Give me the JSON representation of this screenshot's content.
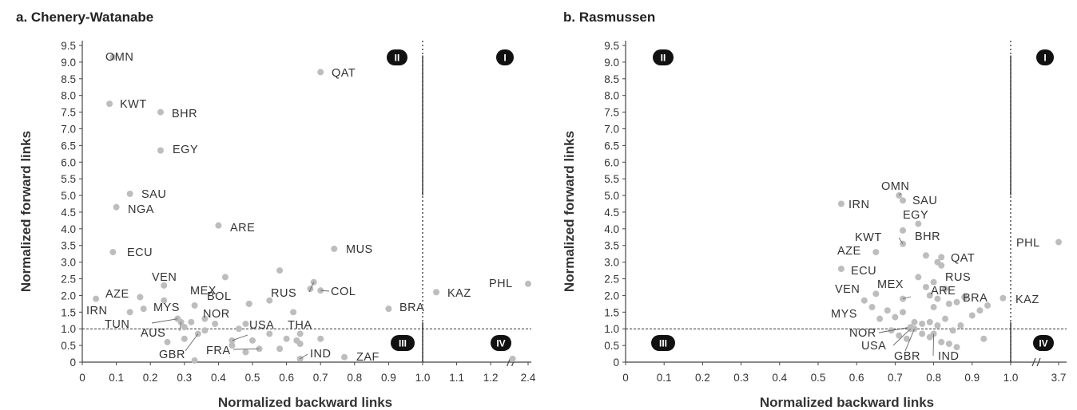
{
  "chart_data": [
    {
      "type": "scatter",
      "title": "a. Chenery-Watanabe",
      "xlabel": "Normalized backward links",
      "ylabel": "Normalized forward links",
      "xlim": [
        0,
        2.4
      ],
      "ylim": [
        0,
        9.5
      ],
      "x_ticks": [
        0,
        0.1,
        0.2,
        0.3,
        0.4,
        0.5,
        0.6,
        0.7,
        0.8,
        0.9,
        1.0,
        1.1,
        1.2,
        2.4
      ],
      "x_tick_labels": [
        "0",
        "0.1",
        "0.2",
        "0.3",
        "0.4",
        "0.5",
        "0.6",
        "0.7",
        "0.8",
        "0.9",
        "1.0",
        "1.1",
        "1.2",
        "2.4"
      ],
      "x_break": [
        1.2,
        2.4
      ],
      "y_ticks": [
        0,
        0.5,
        1.0,
        1.5,
        2.0,
        2.5,
        3.0,
        3.5,
        4.0,
        4.5,
        5.0,
        5.5,
        6.0,
        6.5,
        7.0,
        7.5,
        8.0,
        8.5,
        9.0,
        9.5
      ],
      "y_tick_labels": [
        "0",
        "0.5",
        "1.0",
        "1.5",
        "2.0",
        "2.5",
        "3.0",
        "3.5",
        "4.0",
        "4.5",
        "5.0",
        "5.5",
        "6.0",
        "6.5",
        "7.0",
        "7.5",
        "8.0",
        "8.5",
        "9.0",
        "9.5"
      ],
      "reference_lines": {
        "x": 1.0,
        "y": 1.0
      },
      "quadrants": [
        {
          "label": "I",
          "position": "top-right"
        },
        {
          "label": "II",
          "position": "top-left"
        },
        {
          "label": "III",
          "position": "bottom-left"
        },
        {
          "label": "IV",
          "position": "bottom-right"
        }
      ],
      "labeled_points": [
        {
          "name": "OMN",
          "x": 0.09,
          "y": 9.15
        },
        {
          "name": "QAT",
          "x": 0.7,
          "y": 8.7
        },
        {
          "name": "KWT",
          "x": 0.08,
          "y": 7.75
        },
        {
          "name": "BHR",
          "x": 0.23,
          "y": 7.5
        },
        {
          "name": "EGY",
          "x": 0.23,
          "y": 6.35
        },
        {
          "name": "SAU",
          "x": 0.14,
          "y": 5.05
        },
        {
          "name": "NGA",
          "x": 0.1,
          "y": 4.65
        },
        {
          "name": "ARE",
          "x": 0.4,
          "y": 4.1
        },
        {
          "name": "MUS",
          "x": 0.74,
          "y": 3.4
        },
        {
          "name": "ECU",
          "x": 0.09,
          "y": 3.3
        },
        {
          "name": "VEN",
          "x": 0.24,
          "y": 2.3
        },
        {
          "name": "MEX",
          "x": 0.33,
          "y": 1.7
        },
        {
          "name": "BOL",
          "x": 0.49,
          "y": 1.75
        },
        {
          "name": "RUS",
          "x": 0.68,
          "y": 2.4
        },
        {
          "name": "COL",
          "x": 0.7,
          "y": 2.15
        },
        {
          "name": "AZE",
          "x": 0.17,
          "y": 1.95
        },
        {
          "name": "IRN",
          "x": 0.04,
          "y": 1.9
        },
        {
          "name": "MYS",
          "x": 0.28,
          "y": 1.3
        },
        {
          "name": "NOR",
          "x": 0.39,
          "y": 1.15
        },
        {
          "name": "TUN",
          "x": 0.28,
          "y": 1.3
        },
        {
          "name": "AUS",
          "x": 0.29,
          "y": 1.2
        },
        {
          "name": "USA",
          "x": 0.44,
          "y": 0.65
        },
        {
          "name": "THA",
          "x": 0.63,
          "y": 0.65
        },
        {
          "name": "FRA",
          "x": 0.52,
          "y": 0.4
        },
        {
          "name": "IND",
          "x": 0.64,
          "y": 0.1
        },
        {
          "name": "GBR",
          "x": 0.34,
          "y": 0.85
        },
        {
          "name": "ZAF",
          "x": 0.77,
          "y": 0.15
        },
        {
          "name": "BRA",
          "x": 0.9,
          "y": 1.6
        },
        {
          "name": "KAZ",
          "x": 1.04,
          "y": 2.1
        },
        {
          "name": "PHL",
          "x": 2.4,
          "y": 2.35
        }
      ],
      "unlabeled_points": [
        [
          0.14,
          1.5
        ],
        [
          0.18,
          1.6
        ],
        [
          0.24,
          1.85
        ],
        [
          0.32,
          1.2
        ],
        [
          0.36,
          1.3
        ],
        [
          0.42,
          2.55
        ],
        [
          0.49,
          1.75
        ],
        [
          0.55,
          1.85
        ],
        [
          0.58,
          2.75
        ],
        [
          0.62,
          1.5
        ],
        [
          0.67,
          2.2
        ],
        [
          0.46,
          1.0
        ],
        [
          0.55,
          0.85
        ],
        [
          0.6,
          0.7
        ],
        [
          0.64,
          0.85
        ],
        [
          0.7,
          0.7
        ],
        [
          0.5,
          0.65
        ],
        [
          0.44,
          0.5
        ],
        [
          0.48,
          0.3
        ],
        [
          0.58,
          0.4
        ],
        [
          0.25,
          0.6
        ],
        [
          0.3,
          0.7
        ],
        [
          0.33,
          0.05
        ],
        [
          0.36,
          0.95
        ],
        [
          0.3,
          1.05
        ],
        [
          0.64,
          0.55
        ],
        [
          0.48,
          1.15
        ],
        [
          1.29,
          0.1
        ]
      ]
    },
    {
      "type": "scatter",
      "title": "b. Rasmussen",
      "xlabel": "Normalized backward links",
      "ylabel": "Normalized forward links",
      "xlim": [
        0,
        3.7
      ],
      "ylim": [
        0,
        9.5
      ],
      "x_ticks": [
        0,
        0.1,
        0.2,
        0.3,
        0.4,
        0.5,
        0.6,
        0.7,
        0.8,
        0.9,
        1.0,
        3.7
      ],
      "x_tick_labels": [
        "0",
        "0.1",
        "0.2",
        "0.3",
        "0.4",
        "0.5",
        "0.6",
        "0.7",
        "0.8",
        "0.9",
        "1.0",
        "3.7"
      ],
      "x_break": [
        1.0,
        3.7
      ],
      "y_ticks": [
        0,
        0.5,
        1.0,
        1.5,
        2.0,
        2.5,
        3.0,
        3.5,
        4.0,
        4.5,
        5.0,
        5.5,
        6.0,
        6.5,
        7.0,
        7.5,
        8.0,
        8.5,
        9.0,
        9.5
      ],
      "y_tick_labels": [
        "0",
        "0.5",
        "1.0",
        "1.5",
        "2.0",
        "2.5",
        "3.0",
        "3.5",
        "4.0",
        "4.5",
        "5.0",
        "5.5",
        "6.0",
        "6.5",
        "7.0",
        "7.5",
        "8.0",
        "8.5",
        "9.0",
        "9.5"
      ],
      "reference_lines": {
        "x": 1.0,
        "y": 1.0
      },
      "quadrants": [
        {
          "label": "I",
          "position": "top-right"
        },
        {
          "label": "II",
          "position": "top-left"
        },
        {
          "label": "III",
          "position": "bottom-left"
        },
        {
          "label": "IV",
          "position": "bottom-right"
        }
      ],
      "labeled_points": [
        {
          "name": "OMN",
          "x": 0.71,
          "y": 5.0
        },
        {
          "name": "SAU",
          "x": 0.72,
          "y": 4.85
        },
        {
          "name": "IRN",
          "x": 0.56,
          "y": 4.75
        },
        {
          "name": "EGY",
          "x": 0.76,
          "y": 4.15
        },
        {
          "name": "KWT",
          "x": 0.72,
          "y": 3.55
        },
        {
          "name": "BHR",
          "x": 0.72,
          "y": 3.95
        },
        {
          "name": "AZE",
          "x": 0.65,
          "y": 3.3
        },
        {
          "name": "QAT",
          "x": 0.82,
          "y": 3.15
        },
        {
          "name": "ECU",
          "x": 0.56,
          "y": 2.8
        },
        {
          "name": "RUS",
          "x": 0.82,
          "y": 2.9
        },
        {
          "name": "VEN",
          "x": 0.65,
          "y": 2.05
        },
        {
          "name": "MEX",
          "x": 0.72,
          "y": 1.9
        },
        {
          "name": "ARE",
          "x": 0.84,
          "y": 1.75
        },
        {
          "name": "BRA",
          "x": 0.94,
          "y": 1.7
        },
        {
          "name": "PHL",
          "x": 3.7,
          "y": 3.6
        },
        {
          "name": "KAZ",
          "x": 0.98,
          "y": 1.92
        },
        {
          "name": "MYS",
          "x": 0.66,
          "y": 1.3
        },
        {
          "name": "NOR",
          "x": 0.74,
          "y": 1.05
        },
        {
          "name": "USA",
          "x": 0.74,
          "y": 1.0
        },
        {
          "name": "GBR",
          "x": 0.75,
          "y": 1.0
        },
        {
          "name": "IND",
          "x": 0.8,
          "y": 0.85
        }
      ],
      "unlabeled_points": [
        [
          0.62,
          1.85
        ],
        [
          0.64,
          1.65
        ],
        [
          0.68,
          1.55
        ],
        [
          0.7,
          1.35
        ],
        [
          0.72,
          1.5
        ],
        [
          0.75,
          1.2
        ],
        [
          0.77,
          1.15
        ],
        [
          0.78,
          2.25
        ],
        [
          0.79,
          2.0
        ],
        [
          0.8,
          1.65
        ],
        [
          0.81,
          1.9
        ],
        [
          0.83,
          2.2
        ],
        [
          0.86,
          1.8
        ],
        [
          0.88,
          1.95
        ],
        [
          0.9,
          1.4
        ],
        [
          0.92,
          1.55
        ],
        [
          0.93,
          0.7
        ],
        [
          0.79,
          1.2
        ],
        [
          0.81,
          1.1
        ],
        [
          0.83,
          1.3
        ],
        [
          0.85,
          0.95
        ],
        [
          0.87,
          1.1
        ],
        [
          0.69,
          0.95
        ],
        [
          0.71,
          0.8
        ],
        [
          0.73,
          0.7
        ],
        [
          0.77,
          0.85
        ],
        [
          0.79,
          0.75
        ],
        [
          0.82,
          0.6
        ],
        [
          0.84,
          0.55
        ],
        [
          0.86,
          0.45
        ],
        [
          0.78,
          3.2
        ],
        [
          0.81,
          3.0
        ],
        [
          0.76,
          2.55
        ],
        [
          0.8,
          2.4
        ]
      ]
    }
  ]
}
